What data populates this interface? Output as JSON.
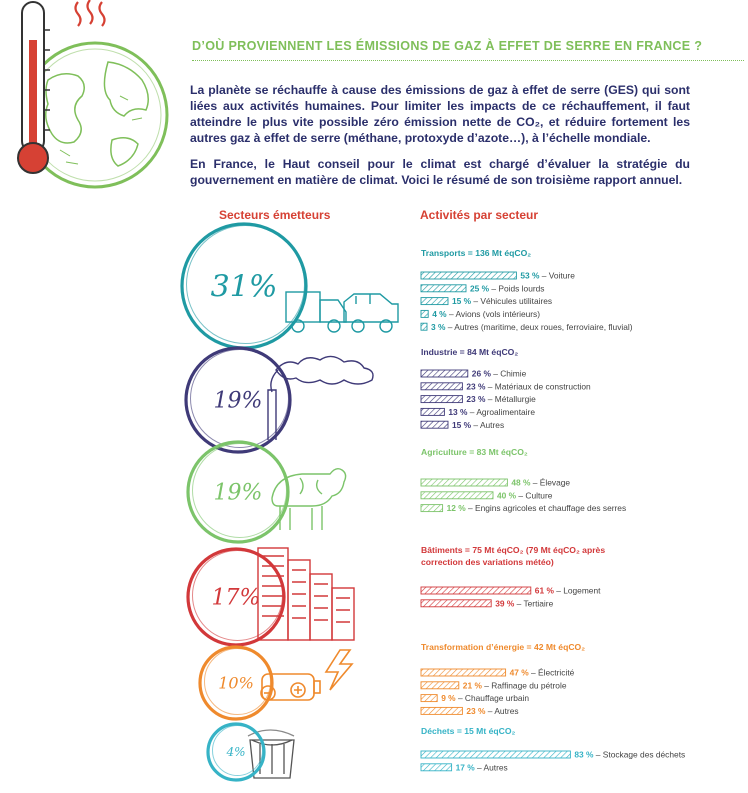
{
  "title": "D’OÙ PROVIENNENT LES ÉMISSIONS DE GAZ À EFFET DE SERRE EN FRANCE ?",
  "intro": {
    "p1": "La planète se réchauffe à cause des émissions de gaz à effet de serre (GES) qui sont liées aux activités humaines. Pour limiter les impacts de ce réchauffement, il faut atteindre le plus vite possible zéro émission nette de CO₂, et réduire fortement les autres gaz à effet de serre (méthane, protoxyde d’azote…), à l’échelle mondiale.",
    "p2": "En France, le Haut conseil pour le climat est chargé d’évaluer la stratégie du gouvernement en matière de climat. Voici le résumé de son troisième rapport annuel."
  },
  "columns": {
    "left": "Secteurs émetteurs",
    "right": "Activités par secteur"
  },
  "colors": {
    "title_green": "#7fbf5a",
    "intro_navy": "#2b2f6b",
    "red": "#d64134"
  },
  "chart_data": {
    "type": "bar",
    "unit": "%",
    "sectors": [
      {
        "share_label": "31%",
        "share": 31,
        "heading": "Transports = 136 Mt éqCO₂",
        "heading_lines": [
          "Transports = 136 Mt éqCO₂"
        ],
        "color": "#1f9aa3",
        "icon": "truck-car-icon",
        "items": [
          {
            "value": 53,
            "label": "53 %",
            "name": " – Voiture"
          },
          {
            "value": 25,
            "label": "25 %",
            "name": " – Poids lourds"
          },
          {
            "value": 15,
            "label": "15 %",
            "name": " – Véhicules utilitaires"
          },
          {
            "value": 4,
            "label": "4 %",
            "name": " – Avions (vols intérieurs)"
          },
          {
            "value": 3,
            "label": "3 %",
            "name": " – Autres (maritime, deux roues, ferroviaire, fluvial)"
          }
        ]
      },
      {
        "share_label": "19%",
        "share": 19,
        "heading": "Industrie = 84 Mt éqCO₂",
        "heading_lines": [
          "Industrie = 84 Mt éqCO₂"
        ],
        "color": "#3f3a78",
        "icon": "factory-smoke-icon",
        "items": [
          {
            "value": 26,
            "label": "26 %",
            "name": " – Chimie"
          },
          {
            "value": 23,
            "label": "23 %",
            "name": " – Matériaux de construction"
          },
          {
            "value": 23,
            "label": "23 %",
            "name": " – Métallurgie"
          },
          {
            "value": 13,
            "label": "13 %",
            "name": " – Agroalimentaire"
          },
          {
            "value": 15,
            "label": "15 %",
            "name": " – Autres"
          }
        ]
      },
      {
        "share_label": "19%",
        "share": 19,
        "heading": "Agriculture = 83 Mt éqCO₂",
        "heading_lines": [
          "Agriculture = 83 Mt éqCO₂"
        ],
        "color": "#7cc46a",
        "icon": "cow-icon",
        "items": [
          {
            "value": 48,
            "label": "48 %",
            "name": " – Élevage"
          },
          {
            "value": 40,
            "label": "40 %",
            "name": " – Culture"
          },
          {
            "value": 12,
            "label": "12 %",
            "name": " – Engins agricoles et chauffage des serres"
          }
        ]
      },
      {
        "share_label": "17%",
        "share": 17,
        "heading": "Bâtiments = 75 Mt éqCO₂ (79 Mt éqCO₂ après correction des variations météo)",
        "heading_lines": [
          "Bâtiments = 75 Mt éqCO₂ (79 Mt éqCO₂ après",
          "correction des variations météo)"
        ],
        "color": "#d2383a",
        "icon": "buildings-icon",
        "items": [
          {
            "value": 61,
            "label": "61 %",
            "name": " – Logement"
          },
          {
            "value": 39,
            "label": "39 %",
            "name": " – Tertiaire"
          }
        ]
      },
      {
        "share_label": "10%",
        "share": 10,
        "heading": "Transformation d’énergie = 42 Mt éqCO₂",
        "heading_lines": [
          "Transformation d’énergie = 42 Mt éqCO₂"
        ],
        "color": "#ef8a2d",
        "icon": "battery-lightning-icon",
        "items": [
          {
            "value": 47,
            "label": "47 %",
            "name": " – Électricité"
          },
          {
            "value": 21,
            "label": "21 %",
            "name": " – Raffinage du pétrole"
          },
          {
            "value": 9,
            "label": "9 %",
            "name": " – Chauffage urbain"
          },
          {
            "value": 23,
            "label": "23 %",
            "name": " – Autres"
          }
        ]
      },
      {
        "share_label": "4%",
        "share": 4,
        "heading": "Déchets = 15 Mt éqCO₂",
        "heading_lines": [
          "Déchets = 15 Mt éqCO₂"
        ],
        "color": "#36b3c6",
        "icon": "trash-bin-icon",
        "items": [
          {
            "value": 83,
            "label": "83 %",
            "name": " – Stockage des déchets"
          },
          {
            "value": 17,
            "label": "17 %",
            "name": " – Autres"
          }
        ]
      }
    ]
  }
}
